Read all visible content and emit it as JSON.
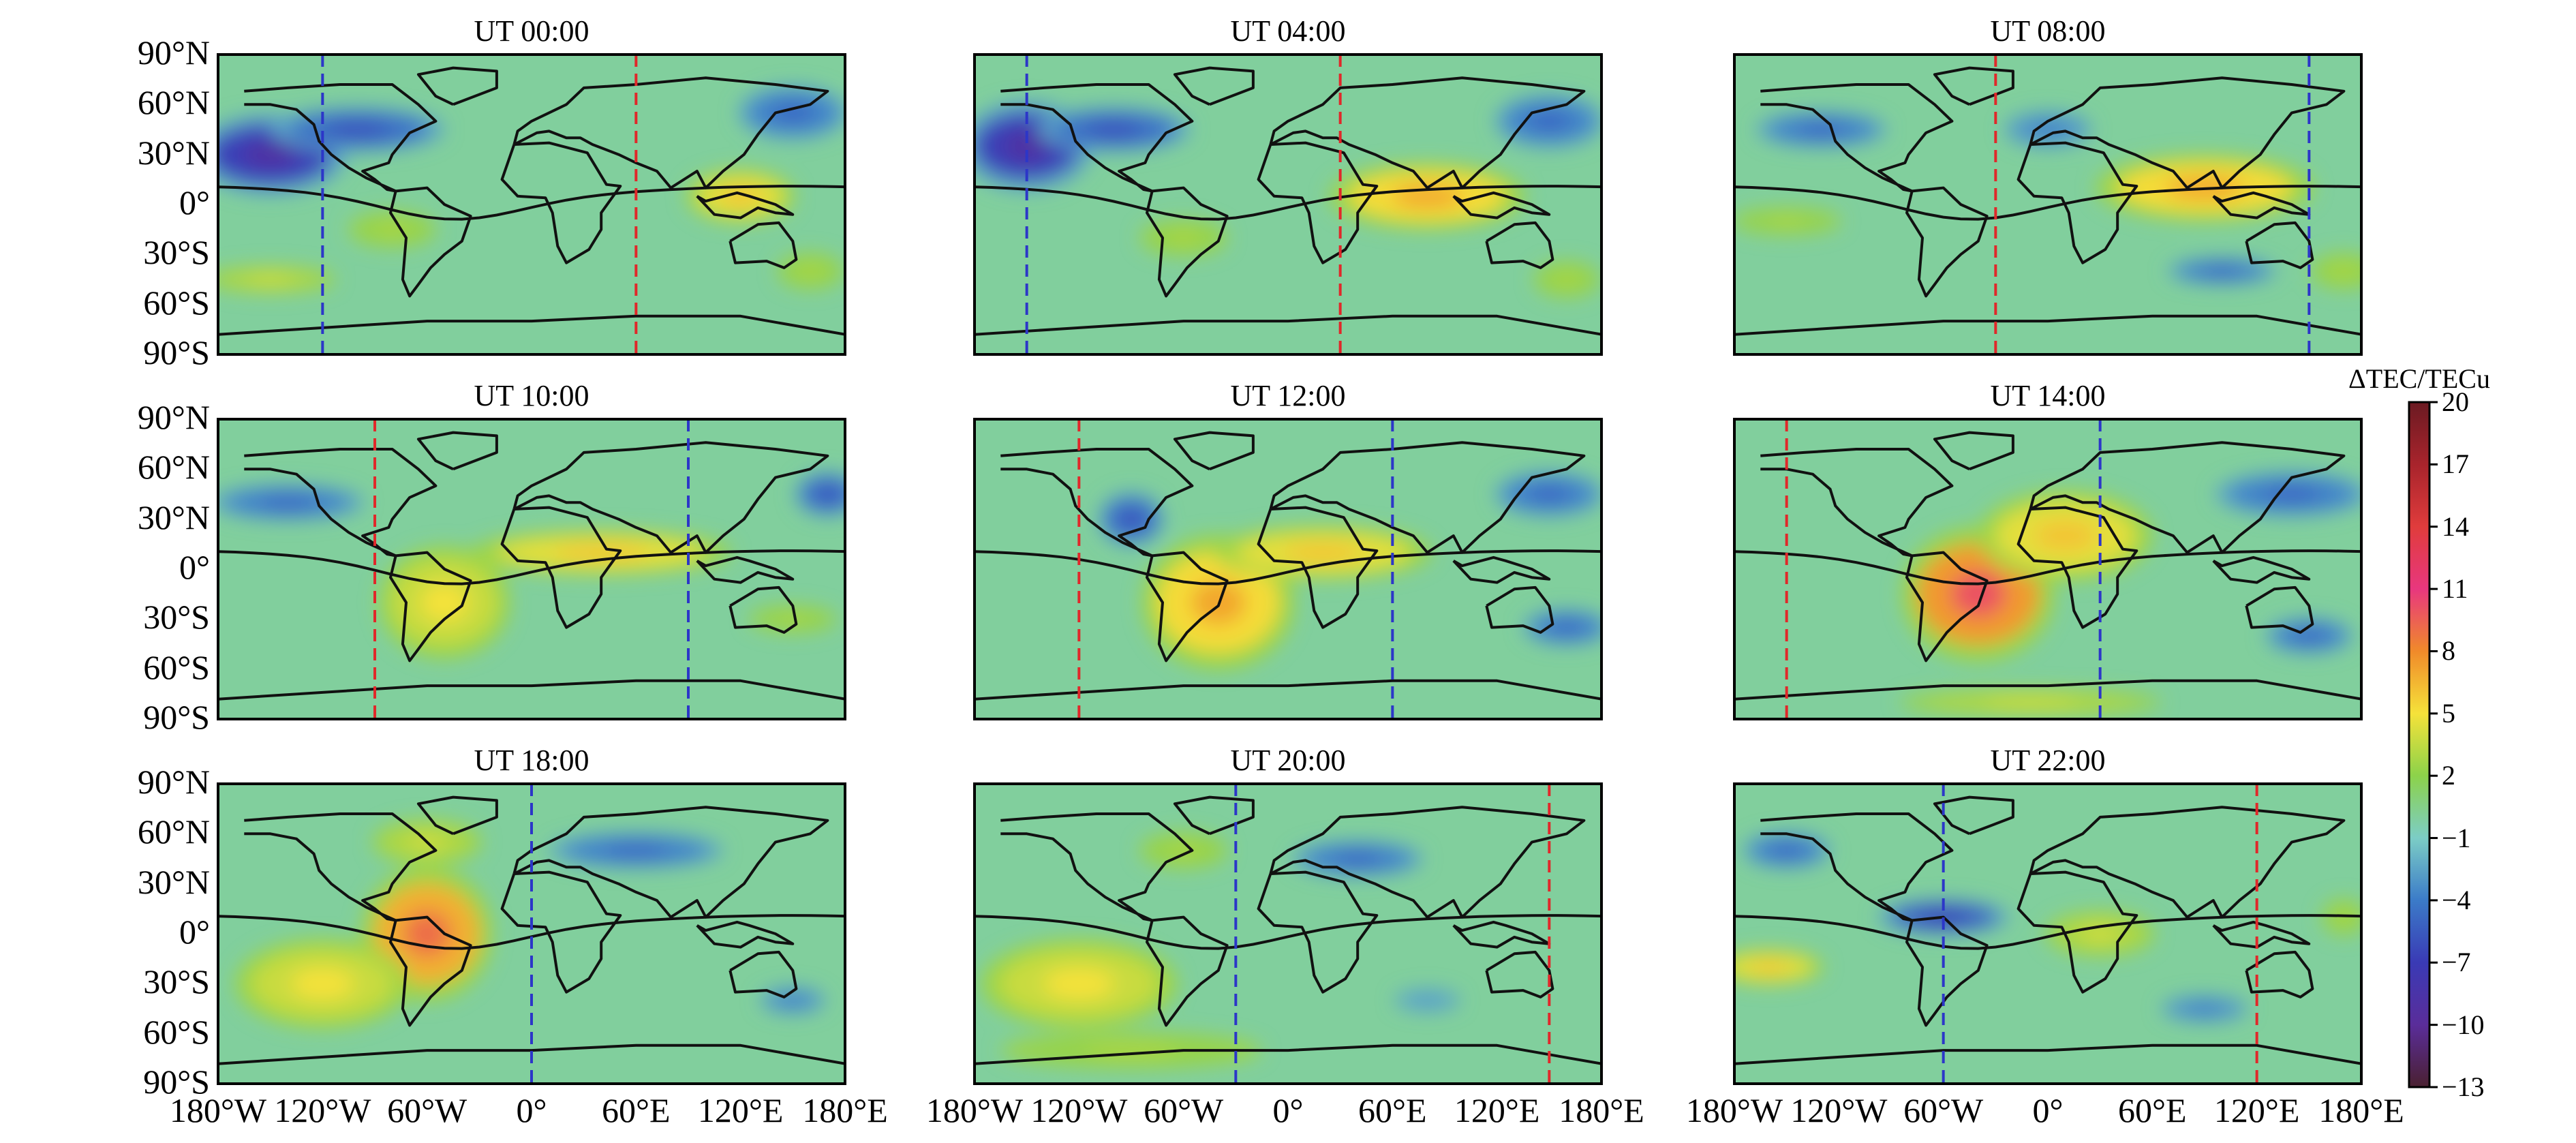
{
  "chart_data": {
    "type": "heatmap",
    "title": "",
    "colorbar": {
      "label": "ΔTEC/TECu",
      "min": -13,
      "max": 20,
      "ticks": [
        20,
        17,
        14,
        11,
        8,
        5,
        2,
        -1,
        -4,
        -7,
        -10,
        -13
      ],
      "tick_labels": [
        "20",
        "17",
        "14",
        "11",
        "8",
        "5",
        "2",
        "−1",
        "−4",
        "−7",
        "−10",
        "−13"
      ],
      "colors": [
        "#6b1a22",
        "#a8242c",
        "#e03c3c",
        "#e8377e",
        "#f08a2a",
        "#f5e23a",
        "#8cd24a",
        "#7ccdc6",
        "#3b7bc8",
        "#3a3ab5",
        "#5a2d9a",
        "#4a2030"
      ]
    },
    "background_value": 0,
    "lat_ticks": [
      "90°N",
      "60°N",
      "30°N",
      "0°",
      "30°S",
      "60°S",
      "90°S"
    ],
    "lon_ticks": [
      "180°W",
      "120°W",
      "60°W",
      "0°",
      "60°E",
      "120°E",
      "180°E"
    ],
    "lon_range": [
      -180,
      180
    ],
    "lat_range": [
      -90,
      90
    ],
    "panels": [
      {
        "title": "UT 00:00",
        "red_line_lon": 60,
        "blue_line_lon": -120,
        "anomalies": [
          {
            "lon": -150,
            "lat": 30,
            "rx": 35,
            "ry": 18,
            "value": -9
          },
          {
            "lon": -100,
            "lat": 45,
            "rx": 40,
            "ry": 10,
            "value": -6
          },
          {
            "lon": 120,
            "lat": 5,
            "rx": 25,
            "ry": 12,
            "value": 6
          },
          {
            "lon": 150,
            "lat": 55,
            "rx": 25,
            "ry": 12,
            "value": -5
          },
          {
            "lon": -150,
            "lat": -45,
            "rx": 30,
            "ry": 6,
            "value": 4
          },
          {
            "lon": -80,
            "lat": -15,
            "rx": 20,
            "ry": 8,
            "value": 3
          },
          {
            "lon": 160,
            "lat": -40,
            "rx": 15,
            "ry": 8,
            "value": 3
          }
        ]
      },
      {
        "title": "UT 04:00",
        "red_line_lon": 30,
        "blue_line_lon": -150,
        "anomalies": [
          {
            "lon": -150,
            "lat": 35,
            "rx": 30,
            "ry": 20,
            "value": -9
          },
          {
            "lon": -100,
            "lat": 45,
            "rx": 35,
            "ry": 10,
            "value": -6
          },
          {
            "lon": 80,
            "lat": 5,
            "rx": 45,
            "ry": 15,
            "value": 7
          },
          {
            "lon": 150,
            "lat": 50,
            "rx": 25,
            "ry": 12,
            "value": -5
          },
          {
            "lon": -60,
            "lat": -20,
            "rx": 20,
            "ry": 8,
            "value": 3
          },
          {
            "lon": 160,
            "lat": -45,
            "rx": 15,
            "ry": 8,
            "value": 3
          }
        ]
      },
      {
        "title": "UT 08:00",
        "red_line_lon": -30,
        "blue_line_lon": 150,
        "anomalies": [
          {
            "lon": 90,
            "lat": 10,
            "rx": 50,
            "ry": 15,
            "value": 7
          },
          {
            "lon": -130,
            "lat": 45,
            "rx": 30,
            "ry": 8,
            "value": -5
          },
          {
            "lon": 100,
            "lat": -40,
            "rx": 25,
            "ry": 6,
            "value": -5
          },
          {
            "lon": 0,
            "lat": 45,
            "rx": 20,
            "ry": 8,
            "value": -4
          },
          {
            "lon": -150,
            "lat": -10,
            "rx": 25,
            "ry": 6,
            "value": 3
          },
          {
            "lon": 170,
            "lat": -40,
            "rx": 15,
            "ry": 8,
            "value": 3
          }
        ]
      },
      {
        "title": "UT 10:00",
        "red_line_lon": -90,
        "blue_line_lon": 90,
        "anomalies": [
          {
            "lon": -50,
            "lat": -20,
            "rx": 30,
            "ry": 25,
            "value": 5
          },
          {
            "lon": 40,
            "lat": 10,
            "rx": 60,
            "ry": 10,
            "value": 6
          },
          {
            "lon": -140,
            "lat": 40,
            "rx": 35,
            "ry": 8,
            "value": -5
          },
          {
            "lon": 170,
            "lat": 45,
            "rx": 15,
            "ry": 10,
            "value": -6
          },
          {
            "lon": 150,
            "lat": -30,
            "rx": 20,
            "ry": 6,
            "value": 3
          }
        ]
      },
      {
        "title": "UT 12:00",
        "red_line_lon": -120,
        "blue_line_lon": 60,
        "anomalies": [
          {
            "lon": -40,
            "lat": -20,
            "rx": 35,
            "ry": 30,
            "value": 7
          },
          {
            "lon": 20,
            "lat": 10,
            "rx": 50,
            "ry": 12,
            "value": 6
          },
          {
            "lon": -90,
            "lat": 30,
            "rx": 15,
            "ry": 12,
            "value": -6
          },
          {
            "lon": 150,
            "lat": 45,
            "rx": 25,
            "ry": 10,
            "value": -5
          },
          {
            "lon": 160,
            "lat": -35,
            "rx": 20,
            "ry": 8,
            "value": -5
          }
        ]
      },
      {
        "title": "UT 14:00",
        "red_line_lon": -150,
        "blue_line_lon": 30,
        "anomalies": [
          {
            "lon": -40,
            "lat": -15,
            "rx": 35,
            "ry": 30,
            "value": 10
          },
          {
            "lon": 10,
            "lat": 20,
            "rx": 40,
            "ry": 20,
            "value": 6
          },
          {
            "lon": -10,
            "lat": -80,
            "rx": 60,
            "ry": 6,
            "value": 4
          },
          {
            "lon": 140,
            "lat": 45,
            "rx": 35,
            "ry": 10,
            "value": -5
          },
          {
            "lon": 150,
            "lat": -40,
            "rx": 20,
            "ry": 8,
            "value": -5
          }
        ]
      },
      {
        "title": "UT 18:00",
        "red_line_lon": null,
        "blue_line_lon": 0,
        "anomalies": [
          {
            "lon": -60,
            "lat": 0,
            "rx": 30,
            "ry": 30,
            "value": 9
          },
          {
            "lon": -120,
            "lat": -30,
            "rx": 40,
            "ry": 20,
            "value": 5
          },
          {
            "lon": -60,
            "lat": 55,
            "rx": 25,
            "ry": 10,
            "value": 4
          },
          {
            "lon": 60,
            "lat": 50,
            "rx": 40,
            "ry": 8,
            "value": -5
          },
          {
            "lon": 150,
            "lat": -40,
            "rx": 15,
            "ry": 6,
            "value": -4
          }
        ]
      },
      {
        "title": "UT 20:00",
        "red_line_lon": 150,
        "blue_line_lon": -30,
        "anomalies": [
          {
            "lon": -120,
            "lat": -30,
            "rx": 45,
            "ry": 20,
            "value": 5
          },
          {
            "lon": -90,
            "lat": -70,
            "rx": 60,
            "ry": 8,
            "value": 3
          },
          {
            "lon": 40,
            "lat": 45,
            "rx": 30,
            "ry": 8,
            "value": -5
          },
          {
            "lon": -60,
            "lat": 50,
            "rx": 20,
            "ry": 8,
            "value": 3
          },
          {
            "lon": 80,
            "lat": -40,
            "rx": 15,
            "ry": 5,
            "value": -3
          }
        ]
      },
      {
        "title": "UT 22:00",
        "red_line_lon": 120,
        "blue_line_lon": -60,
        "anomalies": [
          {
            "lon": -60,
            "lat": 10,
            "rx": 30,
            "ry": 8,
            "value": -7
          },
          {
            "lon": -160,
            "lat": -20,
            "rx": 25,
            "ry": 8,
            "value": 6
          },
          {
            "lon": 30,
            "lat": 0,
            "rx": 25,
            "ry": 10,
            "value": 4
          },
          {
            "lon": -150,
            "lat": 50,
            "rx": 20,
            "ry": 8,
            "value": -5
          },
          {
            "lon": 90,
            "lat": -45,
            "rx": 20,
            "ry": 6,
            "value": -4
          },
          {
            "lon": 170,
            "lat": 10,
            "rx": 10,
            "ry": 8,
            "value": 3
          }
        ]
      }
    ]
  }
}
